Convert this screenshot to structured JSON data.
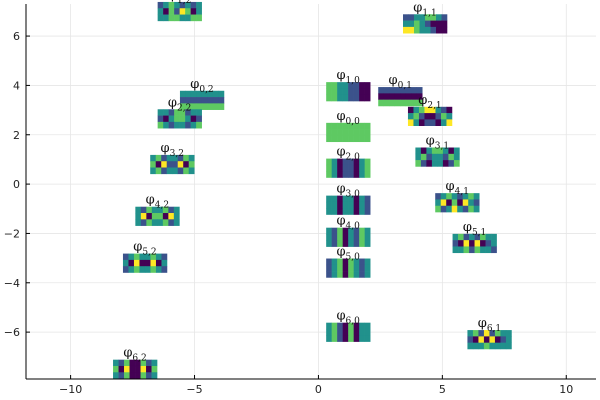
{
  "chart_data": {
    "type": "scatter",
    "title": "",
    "xlabel": "",
    "ylabel": "",
    "xlim": [
      -11.8,
      11.2
    ],
    "ylim": [
      -7.9,
      7.3
    ],
    "xticks": [
      -10,
      -5,
      0,
      5,
      10
    ],
    "xtick_labels": [
      "−10",
      "−5",
      "0",
      "5",
      "10"
    ],
    "yticks": [
      -6,
      -4,
      -2,
      0,
      2,
      4,
      6
    ],
    "ytick_labels": [
      "−6",
      "−4",
      "−2",
      "0",
      "2",
      "4",
      "6"
    ],
    "grid": true,
    "legend": "none",
    "colormap": [
      "#440154",
      "#3b528b",
      "#21918c",
      "#5ec962",
      "#fde725"
    ],
    "points": [
      {
        "label": "φ",
        "sub": "0,0",
        "x": 1.2,
        "y": 2.1,
        "cells": [
          [
            3,
            3,
            3,
            3,
            3,
            3,
            3,
            3
          ],
          [
            3,
            3,
            3,
            3,
            3,
            3,
            3,
            3
          ],
          [
            3,
            3,
            3,
            3,
            3,
            3,
            3,
            3
          ]
        ]
      },
      {
        "label": "φ",
        "sub": "1,0",
        "x": 1.2,
        "y": 3.75,
        "cells": [
          [
            3,
            3,
            2,
            2,
            1,
            1,
            0,
            0
          ],
          [
            3,
            3,
            2,
            2,
            1,
            1,
            0,
            0
          ],
          [
            3,
            3,
            2,
            2,
            1,
            1,
            0,
            0
          ]
        ]
      },
      {
        "label": "φ",
        "sub": "2,0",
        "x": 1.2,
        "y": 0.65,
        "cells": [
          [
            3,
            2,
            0,
            1,
            1,
            0,
            2,
            3
          ],
          [
            3,
            2,
            0,
            1,
            1,
            0,
            2,
            3
          ],
          [
            3,
            2,
            0,
            1,
            1,
            0,
            2,
            3
          ]
        ]
      },
      {
        "label": "φ",
        "sub": "3,0",
        "x": 1.2,
        "y": -0.85,
        "cells": [
          [
            2,
            2,
            0,
            2,
            2,
            0,
            2,
            1
          ],
          [
            2,
            2,
            0,
            2,
            2,
            0,
            2,
            1
          ],
          [
            2,
            2,
            0,
            2,
            2,
            0,
            2,
            1
          ]
        ]
      },
      {
        "label": "φ",
        "sub": "4,0",
        "x": 1.2,
        "y": -2.15,
        "cells": [
          [
            2,
            1,
            3,
            0,
            2,
            1,
            3,
            2
          ],
          [
            2,
            1,
            3,
            0,
            2,
            1,
            3,
            2
          ],
          [
            2,
            1,
            3,
            0,
            2,
            1,
            3,
            2
          ]
        ]
      },
      {
        "label": "φ",
        "sub": "5,0",
        "x": 1.2,
        "y": -3.4,
        "cells": [
          [
            1,
            2,
            3,
            0,
            3,
            2,
            1,
            2
          ],
          [
            1,
            2,
            3,
            0,
            3,
            2,
            1,
            2
          ],
          [
            1,
            2,
            3,
            0,
            3,
            2,
            1,
            2
          ]
        ]
      },
      {
        "label": "φ",
        "sub": "6,0",
        "x": 1.2,
        "y": -6.0,
        "cells": [
          [
            2,
            3,
            1,
            0,
            3,
            0,
            2,
            2
          ],
          [
            2,
            3,
            1,
            0,
            3,
            0,
            2,
            2
          ],
          [
            2,
            3,
            1,
            0,
            3,
            0,
            2,
            2
          ]
        ]
      },
      {
        "label": "φ",
        "sub": "0,1",
        "x": 3.3,
        "y": 3.55,
        "cells": [
          [
            1,
            1,
            1,
            1,
            1,
            1,
            1,
            1
          ],
          [
            0,
            0,
            0,
            0,
            0,
            0,
            0,
            0
          ],
          [
            3,
            3,
            3,
            3,
            3,
            3,
            3,
            3
          ]
        ]
      },
      {
        "label": "φ",
        "sub": "1,1",
        "x": 4.3,
        "y": 6.5,
        "cells": [
          [
            1,
            1,
            2,
            2,
            3,
            3,
            2,
            1
          ],
          [
            2,
            2,
            3,
            2,
            1,
            0,
            0,
            0
          ],
          [
            4,
            4,
            3,
            2,
            2,
            1,
            0,
            0
          ]
        ]
      },
      {
        "label": "φ",
        "sub": "2,1",
        "x": 4.5,
        "y": 2.75,
        "cells": [
          [
            0,
            2,
            3,
            4,
            4,
            2,
            1,
            0
          ],
          [
            2,
            3,
            1,
            0,
            0,
            1,
            3,
            2
          ],
          [
            4,
            2,
            0,
            1,
            1,
            0,
            2,
            4
          ]
        ]
      },
      {
        "label": "φ",
        "sub": "3,1",
        "x": 4.8,
        "y": 1.1,
        "cells": [
          [
            2,
            0,
            2,
            3,
            3,
            2,
            0,
            2
          ],
          [
            2,
            3,
            1,
            2,
            2,
            1,
            3,
            2
          ],
          [
            3,
            1,
            0,
            2,
            2,
            0,
            1,
            3
          ]
        ]
      },
      {
        "label": "φ",
        "sub": "4,1",
        "x": 5.6,
        "y": -0.75,
        "cells": [
          [
            1,
            2,
            3,
            2,
            1,
            2,
            3,
            2
          ],
          [
            2,
            4,
            0,
            3,
            0,
            4,
            2,
            1
          ],
          [
            3,
            1,
            2,
            4,
            2,
            1,
            3,
            2
          ]
        ]
      },
      {
        "label": "φ",
        "sub": "5,1",
        "x": 6.3,
        "y": -2.4,
        "cells": [
          [
            2,
            3,
            1,
            2,
            1,
            3,
            2,
            2
          ],
          [
            1,
            0,
            4,
            0,
            4,
            0,
            1,
            2
          ],
          [
            2,
            2,
            3,
            1,
            3,
            2,
            2,
            1
          ]
        ]
      },
      {
        "label": "φ",
        "sub": "6,1",
        "x": 6.9,
        "y": -6.3,
        "cells": [
          [
            2,
            3,
            1,
            4,
            1,
            3,
            2,
            2
          ],
          [
            1,
            0,
            4,
            0,
            4,
            0,
            1,
            2
          ],
          [
            2,
            2,
            2,
            3,
            2,
            2,
            2,
            2
          ]
        ]
      },
      {
        "label": "φ",
        "sub": "0,2",
        "x": -4.7,
        "y": 3.4,
        "cells": [
          [
            2,
            2,
            2,
            2,
            2,
            2,
            2,
            2
          ],
          [
            1,
            1,
            1,
            1,
            1,
            1,
            1,
            1
          ],
          [
            3,
            3,
            3,
            3,
            3,
            3,
            3,
            3
          ]
        ]
      },
      {
        "label": "φ",
        "sub": "1,2",
        "x": -5.6,
        "y": 7.0,
        "cells": [
          [
            1,
            2,
            3,
            2,
            1,
            2,
            1,
            2
          ],
          [
            2,
            0,
            3,
            1,
            4,
            3,
            0,
            2
          ],
          [
            2,
            2,
            3,
            3,
            2,
            2,
            3,
            3
          ]
        ]
      },
      {
        "label": "φ",
        "sub": "2,2",
        "x": -5.6,
        "y": 2.65,
        "cells": [
          [
            2,
            2,
            1,
            3,
            3,
            1,
            2,
            2
          ],
          [
            1,
            0,
            2,
            3,
            3,
            2,
            0,
            1
          ],
          [
            3,
            2,
            1,
            2,
            2,
            1,
            2,
            3
          ]
        ]
      },
      {
        "label": "φ",
        "sub": "3,2",
        "x": -5.9,
        "y": 0.8,
        "cells": [
          [
            2,
            3,
            1,
            2,
            2,
            1,
            3,
            2
          ],
          [
            3,
            0,
            4,
            1,
            1,
            4,
            0,
            3
          ],
          [
            2,
            3,
            1,
            2,
            2,
            1,
            3,
            2
          ]
        ]
      },
      {
        "label": "φ",
        "sub": "4,2",
        "x": -6.5,
        "y": -1.3,
        "cells": [
          [
            2,
            1,
            3,
            2,
            2,
            3,
            1,
            2
          ],
          [
            2,
            4,
            0,
            3,
            3,
            0,
            4,
            2
          ],
          [
            2,
            1,
            3,
            2,
            2,
            3,
            1,
            2
          ]
        ]
      },
      {
        "label": "φ",
        "sub": "5,2",
        "x": -7.0,
        "y": -3.2,
        "cells": [
          [
            1,
            2,
            3,
            2,
            2,
            3,
            2,
            1
          ],
          [
            2,
            0,
            4,
            0,
            0,
            4,
            0,
            2
          ],
          [
            1,
            2,
            3,
            2,
            2,
            3,
            2,
            1
          ]
        ]
      },
      {
        "label": "φ",
        "sub": "6,2",
        "x": -7.4,
        "y": -7.5,
        "cells": [
          [
            2,
            1,
            3,
            0,
            0,
            3,
            1,
            2
          ],
          [
            3,
            0,
            4,
            0,
            0,
            4,
            0,
            3
          ],
          [
            2,
            1,
            3,
            0,
            0,
            3,
            1,
            2
          ]
        ]
      }
    ]
  }
}
